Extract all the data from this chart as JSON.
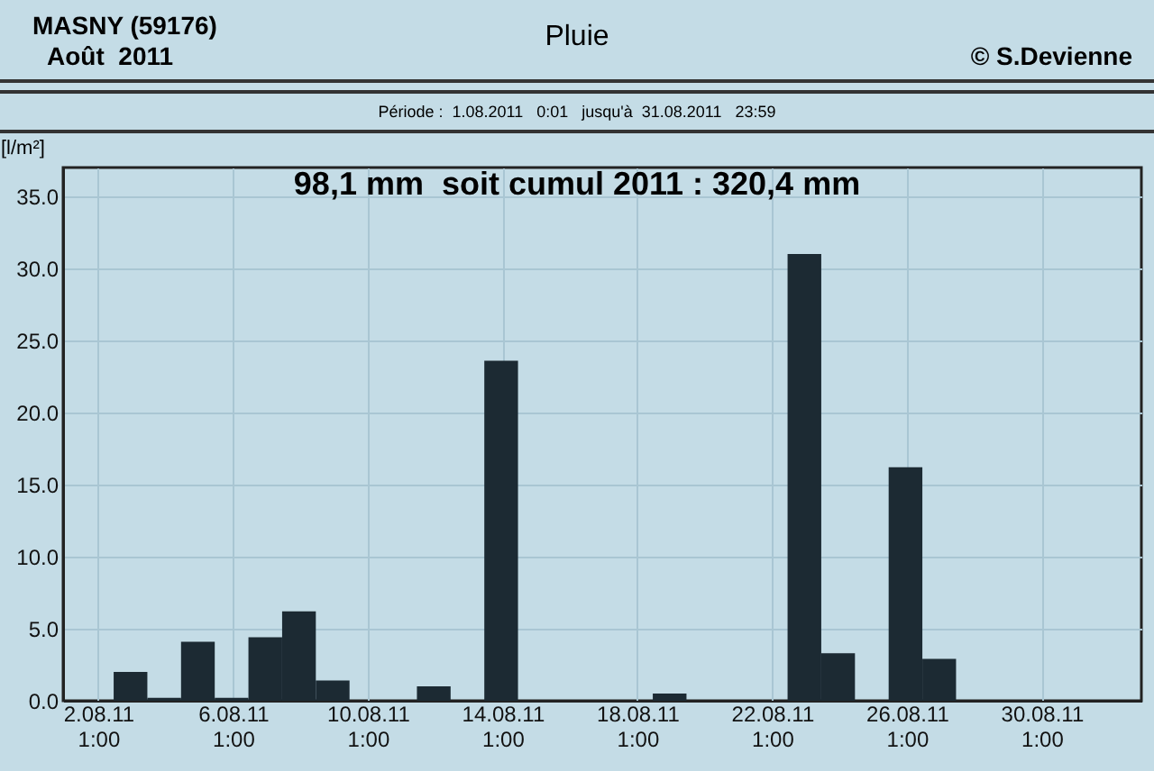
{
  "chart_data": {
    "type": "bar",
    "title": "Pluie",
    "ylabel": "[l/m²]",
    "annotations": [
      "MASNY (59176)",
      "Août  2011",
      "© S.Devienne",
      "Période :  1.08.2011   0:01   jusqu'à  31.08.2011   23:59",
      "98,1 mm  soit cumul 2011 : 320,4 mm"
    ],
    "x": [
      "2011-08-03",
      "2011-08-04",
      "2011-08-05",
      "2011-08-06",
      "2011-08-07",
      "2011-08-08",
      "2011-08-09",
      "2011-08-12",
      "2011-08-14",
      "2011-08-19",
      "2011-08-23",
      "2011-08-24",
      "2011-08-26",
      "2011-08-27"
    ],
    "values": [
      2.0,
      0.2,
      4.1,
      0.2,
      4.4,
      6.2,
      1.4,
      1.0,
      23.6,
      0.5,
      31.0,
      3.3,
      16.2,
      2.9
    ],
    "color": "#1c2a33",
    "xlim": [
      "2011-08-01",
      "2011-09-02"
    ],
    "xticks": [
      {
        "value": "2011-08-02T01:00",
        "label": "2.08.11\n1:00"
      },
      {
        "value": "2011-08-06T01:00",
        "label": "6.08.11\n1:00"
      },
      {
        "value": "2011-08-10T01:00",
        "label": "10.08.11\n1:00"
      },
      {
        "value": "2011-08-14T01:00",
        "label": "14.08.11\n1:00"
      },
      {
        "value": "2011-08-18T01:00",
        "label": "18.08.11\n1:00"
      },
      {
        "value": "2011-08-22T01:00",
        "label": "22.08.11\n1:00"
      },
      {
        "value": "2011-08-26T01:00",
        "label": "26.08.11\n1:00"
      },
      {
        "value": "2011-08-30T01:00",
        "label": "30.08.11\n1:00"
      }
    ],
    "ylim": [
      0,
      37
    ],
    "yticks": [
      {
        "value": 0,
        "label": "0.0"
      },
      {
        "value": 5,
        "label": "5.0"
      },
      {
        "value": 10,
        "label": "10.0"
      },
      {
        "value": 15,
        "label": "15.0"
      },
      {
        "value": 20,
        "label": "20.0"
      },
      {
        "value": 25,
        "label": "25.0"
      },
      {
        "value": 30,
        "label": "30.0"
      },
      {
        "value": 35,
        "label": "35.0"
      }
    ],
    "grid": true
  }
}
